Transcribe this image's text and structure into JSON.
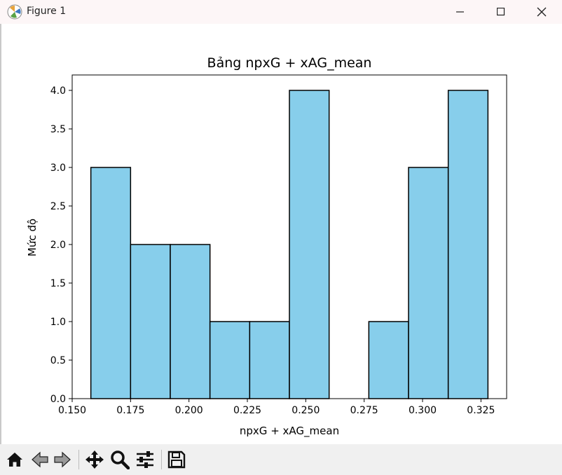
{
  "window": {
    "title": "Figure 1"
  },
  "toolbar": {
    "buttons": [
      {
        "name": "home-icon"
      },
      {
        "name": "back-icon"
      },
      {
        "name": "forward-icon"
      },
      {
        "name": "pan-icon"
      },
      {
        "name": "zoom-icon"
      },
      {
        "name": "configure-subplots-icon"
      },
      {
        "name": "save-icon"
      }
    ]
  },
  "colors": {
    "bar_fill": "#87ceeb",
    "bar_edge": "#000000"
  },
  "chart_data": {
    "type": "bar",
    "title": "Bảng npxG + xAG_mean",
    "xlabel": "npxG + xAG_mean",
    "ylabel": "Mức độ",
    "bins": [
      {
        "start": 0.158,
        "end": 0.175,
        "count": 3
      },
      {
        "start": 0.175,
        "end": 0.192,
        "count": 2
      },
      {
        "start": 0.192,
        "end": 0.209,
        "count": 2
      },
      {
        "start": 0.209,
        "end": 0.226,
        "count": 1
      },
      {
        "start": 0.226,
        "end": 0.243,
        "count": 1
      },
      {
        "start": 0.243,
        "end": 0.26,
        "count": 4
      },
      {
        "start": 0.26,
        "end": 0.277,
        "count": 0
      },
      {
        "start": 0.277,
        "end": 0.294,
        "count": 1
      },
      {
        "start": 0.294,
        "end": 0.311,
        "count": 3
      },
      {
        "start": 0.311,
        "end": 0.328,
        "count": 4
      }
    ],
    "xlim": [
      0.15,
      0.336
    ],
    "ylim": [
      0,
      4.2
    ],
    "xticks": [
      "0.150",
      "0.175",
      "0.200",
      "0.225",
      "0.250",
      "0.275",
      "0.300",
      "0.325"
    ],
    "yticks": [
      "0.0",
      "0.5",
      "1.0",
      "1.5",
      "2.0",
      "2.5",
      "3.0",
      "3.5",
      "4.0"
    ],
    "grid": false,
    "legend": "none"
  }
}
